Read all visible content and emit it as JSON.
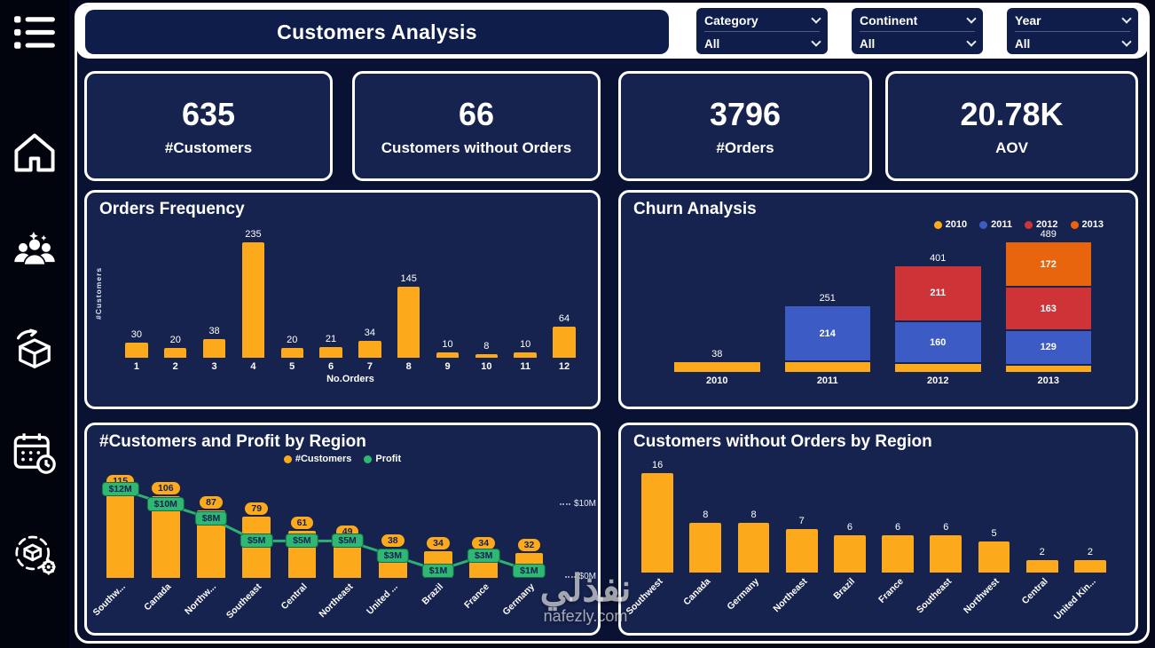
{
  "header": {
    "title": "Customers Analysis"
  },
  "slicers": [
    {
      "label": "Category",
      "value": "All"
    },
    {
      "label": "Continent",
      "value": "All"
    },
    {
      "label": "Year",
      "value": "All"
    }
  ],
  "kpis": [
    {
      "value": "635",
      "label": "#Customers"
    },
    {
      "value": "66",
      "label": "Customers without Orders"
    },
    {
      "value": "3796",
      "label": "#Orders"
    },
    {
      "value": "20.78K",
      "label": "AOV"
    }
  ],
  "sidebar": {
    "icons": [
      "menu-icon",
      "home-icon",
      "customers-icon",
      "returns-icon",
      "calendar-icon",
      "settings-icon"
    ]
  },
  "watermark": {
    "arabic": "نفذلي",
    "domain": "nafezly.com"
  },
  "colors": {
    "orange": "#FCA91C",
    "blue": "#3D5BC4",
    "red": "#CE3437",
    "dark_orange": "#E8650D",
    "green": "#2EB873",
    "card_navy": "#16234F"
  },
  "chart_data": [
    {
      "id": "orders_frequency",
      "type": "bar",
      "title": "Orders Frequency",
      "xlabel": "No.Orders",
      "ylabel": "#Customers",
      "categories": [
        "1",
        "2",
        "3",
        "4",
        "5",
        "6",
        "7",
        "8",
        "9",
        "10",
        "11",
        "12"
      ],
      "values": [
        30,
        20,
        38,
        235,
        20,
        21,
        34,
        145,
        10,
        8,
        10,
        64
      ],
      "ylim": [
        0,
        235
      ],
      "bar_color": "#FCA91C",
      "grid": false
    },
    {
      "id": "churn_analysis",
      "type": "stacked_bar",
      "title": "Churn Analysis",
      "categories": [
        "2010",
        "2011",
        "2012",
        "2013"
      ],
      "legend": [
        {
          "label": "2010",
          "color": "#FCA91C"
        },
        {
          "label": "2011",
          "color": "#3D5BC4"
        },
        {
          "label": "2012",
          "color": "#CE3437"
        },
        {
          "label": "2013",
          "color": "#E8650D"
        }
      ],
      "totals": [
        38,
        251,
        401,
        489
      ],
      "stacks": [
        [
          {
            "series": "2010",
            "value": 38,
            "color": "#FCA91C",
            "label": ""
          }
        ],
        [
          {
            "series": "2010",
            "value": 37,
            "color": "#FCA91C",
            "label": ""
          },
          {
            "series": "2011",
            "value": 214,
            "color": "#3D5BC4",
            "label": "214"
          }
        ],
        [
          {
            "series": "2010",
            "value": 30,
            "color": "#FCA91C",
            "label": ""
          },
          {
            "series": "2011",
            "value": 160,
            "color": "#3D5BC4",
            "label": "160"
          },
          {
            "series": "2012",
            "value": 211,
            "color": "#CE3437",
            "label": "211"
          }
        ],
        [
          {
            "series": "2010",
            "value": 25,
            "color": "#FCA91C",
            "label": ""
          },
          {
            "series": "2011",
            "value": 129,
            "color": "#3D5BC4",
            "label": "129"
          },
          {
            "series": "2012",
            "value": 163,
            "color": "#CE3437",
            "label": "163"
          },
          {
            "series": "2013",
            "value": 172,
            "color": "#E8650D",
            "label": "172"
          }
        ]
      ],
      "ylim": [
        0,
        489
      ],
      "legend_position": "top-right"
    },
    {
      "id": "customers_profit_region",
      "type": "bar_line",
      "title": "#Customers and Profit by Region",
      "legend": [
        {
          "label": "#Customers",
          "color": "#FCA91C"
        },
        {
          "label": "Profit",
          "color": "#2EB873"
        }
      ],
      "categories": [
        "Southw...",
        "Canada",
        "Northw...",
        "Southeast",
        "Central",
        "Northeast",
        "United ...",
        "Brazil",
        "France",
        "Germany"
      ],
      "bar_values": [
        115,
        106,
        87,
        79,
        61,
        49,
        38,
        34,
        34,
        32
      ],
      "line_values_m": [
        12,
        10,
        8,
        5,
        5,
        5,
        3,
        1,
        3,
        1
      ],
      "line_labels": [
        "$12M",
        "$10M",
        "$8M",
        "$5M",
        "$5M",
        "$5M",
        "$3M",
        "$1M",
        "$3M",
        "$1M"
      ],
      "right_axis": {
        "top_label": "$10M",
        "bottom_label": "$0M",
        "max_m": 12
      },
      "ylim": [
        0,
        115
      ],
      "legend_position": "top-center"
    },
    {
      "id": "no_orders_region",
      "type": "bar",
      "title": "Customers without Orders by Region",
      "categories": [
        "Southwest",
        "Canada",
        "Germany",
        "Northeast",
        "Brazil",
        "France",
        "Southeast",
        "Northwest",
        "Central",
        "United Kin..."
      ],
      "values": [
        16,
        8,
        8,
        7,
        6,
        6,
        6,
        5,
        2,
        2
      ],
      "ylim": [
        0,
        16
      ],
      "bar_color": "#FCA91C",
      "rotate_labels": true,
      "grid": false
    }
  ]
}
